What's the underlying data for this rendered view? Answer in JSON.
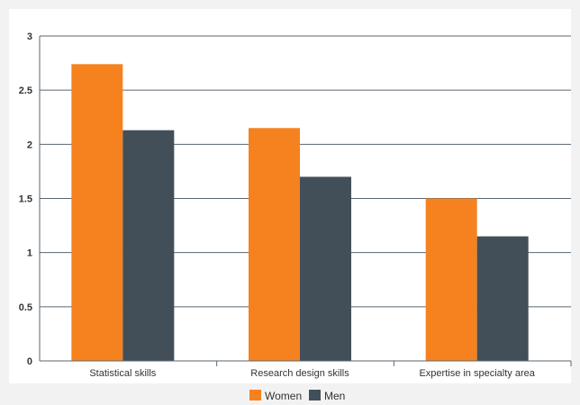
{
  "chart_data": {
    "type": "bar",
    "categories": [
      "Statistical skills",
      "Research design skills",
      "Expertise in specialty area"
    ],
    "series": [
      {
        "name": "Women",
        "values": [
          2.74,
          2.15,
          1.5
        ],
        "color": "#f5821f"
      },
      {
        "name": "Men",
        "values": [
          2.13,
          1.7,
          1.15
        ],
        "color": "#424f58"
      }
    ],
    "ylim": [
      0,
      3
    ],
    "yticks": [
      "0",
      "0.5",
      "1",
      "1.5",
      "2",
      "2.5",
      "3"
    ],
    "grid": true,
    "legend_position": "bottom",
    "background": "#f2f2f2",
    "plot_background": "#ffffff",
    "gridline_color": "#5a6670"
  }
}
